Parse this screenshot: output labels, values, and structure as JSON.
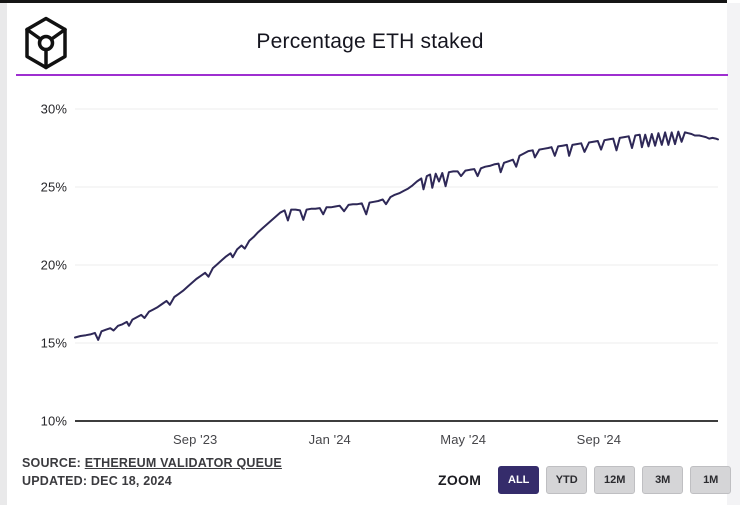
{
  "header": {
    "title": "Percentage ETH staked",
    "logo": "cube-node-logo"
  },
  "colors": {
    "divider": "#9e2fd0",
    "line": "#2e2857",
    "grid": "#ececec",
    "axis": "#3d3d3d",
    "active_button_bg": "#352c6b",
    "button_bg": "#d5d5d7"
  },
  "footer": {
    "source_label": "SOURCE:",
    "source_link": "ETHEREUM VALIDATOR QUEUE",
    "updated": "UPDATED: DEC 18, 2024",
    "zoom_label": "ZOOM",
    "zoom_buttons": [
      {
        "label": "ALL",
        "active": true
      },
      {
        "label": "YTD",
        "active": false
      },
      {
        "label": "12M",
        "active": false
      },
      {
        "label": "3M",
        "active": false
      },
      {
        "label": "1M",
        "active": false
      }
    ]
  },
  "chart_data": {
    "type": "line",
    "title": "Percentage ETH staked",
    "xlabel": "",
    "ylabel": "",
    "ylim": [
      10,
      30
    ],
    "grid": true,
    "legend": "none",
    "yticks": [
      {
        "value": 30,
        "label": "30%"
      },
      {
        "value": 25,
        "label": "25%"
      },
      {
        "value": 20,
        "label": "20%"
      },
      {
        "value": 15,
        "label": "15%"
      },
      {
        "value": 10,
        "label": "10%"
      }
    ],
    "xticks": [
      {
        "date": "2023-09-01",
        "label": "Sep '23"
      },
      {
        "date": "2024-01-01",
        "label": "Jan '24"
      },
      {
        "date": "2024-05-01",
        "label": "May '24"
      },
      {
        "date": "2024-09-01",
        "label": "Sep '24"
      }
    ],
    "series": [
      {
        "name": "Percentage ETH staked",
        "points": [
          [
            "2023-05-15",
            15.35
          ],
          [
            "2023-05-20",
            15.45
          ],
          [
            "2023-05-25",
            15.5
          ],
          [
            "2023-05-29",
            15.55
          ],
          [
            "2023-06-02",
            15.65
          ],
          [
            "2023-06-05",
            15.2
          ],
          [
            "2023-06-08",
            15.75
          ],
          [
            "2023-06-12",
            15.85
          ],
          [
            "2023-06-16",
            15.95
          ],
          [
            "2023-06-19",
            15.8
          ],
          [
            "2023-06-23",
            16.1
          ],
          [
            "2023-06-27",
            16.2
          ],
          [
            "2023-07-01",
            16.35
          ],
          [
            "2023-07-03",
            16.1
          ],
          [
            "2023-07-06",
            16.5
          ],
          [
            "2023-07-10",
            16.65
          ],
          [
            "2023-07-14",
            16.8
          ],
          [
            "2023-07-17",
            16.6
          ],
          [
            "2023-07-21",
            17.0
          ],
          [
            "2023-07-25",
            17.15
          ],
          [
            "2023-07-29",
            17.3
          ],
          [
            "2023-08-02",
            17.5
          ],
          [
            "2023-08-06",
            17.7
          ],
          [
            "2023-08-09",
            17.45
          ],
          [
            "2023-08-13",
            17.95
          ],
          [
            "2023-08-17",
            18.15
          ],
          [
            "2023-08-21",
            18.35
          ],
          [
            "2023-08-25",
            18.6
          ],
          [
            "2023-08-29",
            18.85
          ],
          [
            "2023-09-02",
            19.1
          ],
          [
            "2023-09-06",
            19.3
          ],
          [
            "2023-09-10",
            19.5
          ],
          [
            "2023-09-13",
            19.25
          ],
          [
            "2023-09-17",
            19.8
          ],
          [
            "2023-09-21",
            20.05
          ],
          [
            "2023-09-25",
            20.3
          ],
          [
            "2023-09-29",
            20.55
          ],
          [
            "2023-10-03",
            20.75
          ],
          [
            "2023-10-05",
            20.5
          ],
          [
            "2023-10-09",
            21.0
          ],
          [
            "2023-10-13",
            21.25
          ],
          [
            "2023-10-16",
            21.05
          ],
          [
            "2023-10-20",
            21.55
          ],
          [
            "2023-10-24",
            21.8
          ],
          [
            "2023-10-28",
            22.1
          ],
          [
            "2023-11-01",
            22.35
          ],
          [
            "2023-11-05",
            22.6
          ],
          [
            "2023-11-09",
            22.85
          ],
          [
            "2023-11-13",
            23.1
          ],
          [
            "2023-11-17",
            23.35
          ],
          [
            "2023-11-21",
            23.5
          ],
          [
            "2023-11-24",
            22.85
          ],
          [
            "2023-11-27",
            23.55
          ],
          [
            "2023-12-01",
            23.55
          ],
          [
            "2023-12-05",
            23.5
          ],
          [
            "2023-12-08",
            22.9
          ],
          [
            "2023-12-11",
            23.55
          ],
          [
            "2023-12-15",
            23.6
          ],
          [
            "2023-12-19",
            23.6
          ],
          [
            "2023-12-23",
            23.65
          ],
          [
            "2023-12-26",
            23.25
          ],
          [
            "2023-12-29",
            23.7
          ],
          [
            "2024-01-02",
            23.7
          ],
          [
            "2024-01-06",
            23.75
          ],
          [
            "2024-01-10",
            23.8
          ],
          [
            "2024-01-14",
            23.45
          ],
          [
            "2024-01-18",
            23.85
          ],
          [
            "2024-01-22",
            23.9
          ],
          [
            "2024-01-26",
            23.9
          ],
          [
            "2024-01-30",
            23.95
          ],
          [
            "2024-02-03",
            23.25
          ],
          [
            "2024-02-06",
            24.0
          ],
          [
            "2024-02-10",
            24.05
          ],
          [
            "2024-02-14",
            24.1
          ],
          [
            "2024-02-18",
            24.2
          ],
          [
            "2024-02-21",
            23.9
          ],
          [
            "2024-02-25",
            24.35
          ],
          [
            "2024-02-29",
            24.5
          ],
          [
            "2024-03-04",
            24.6
          ],
          [
            "2024-03-08",
            24.75
          ],
          [
            "2024-03-12",
            24.9
          ],
          [
            "2024-03-16",
            25.1
          ],
          [
            "2024-03-20",
            25.35
          ],
          [
            "2024-03-24",
            25.55
          ],
          [
            "2024-03-26",
            24.85
          ],
          [
            "2024-03-29",
            25.7
          ],
          [
            "2024-04-01",
            25.8
          ],
          [
            "2024-04-03",
            24.95
          ],
          [
            "2024-04-06",
            25.85
          ],
          [
            "2024-04-09",
            25.35
          ],
          [
            "2024-04-12",
            25.9
          ],
          [
            "2024-04-15",
            25.05
          ],
          [
            "2024-04-18",
            25.95
          ],
          [
            "2024-04-22",
            26.0
          ],
          [
            "2024-04-26",
            26.0
          ],
          [
            "2024-04-29",
            25.7
          ],
          [
            "2024-05-03",
            26.05
          ],
          [
            "2024-05-07",
            26.1
          ],
          [
            "2024-05-11",
            26.15
          ],
          [
            "2024-05-14",
            25.7
          ],
          [
            "2024-05-17",
            26.2
          ],
          [
            "2024-05-21",
            26.3
          ],
          [
            "2024-05-25",
            26.35
          ],
          [
            "2024-05-29",
            26.45
          ],
          [
            "2024-06-02",
            26.5
          ],
          [
            "2024-06-04",
            25.95
          ],
          [
            "2024-06-07",
            26.55
          ],
          [
            "2024-06-11",
            26.65
          ],
          [
            "2024-06-15",
            26.75
          ],
          [
            "2024-06-18",
            26.3
          ],
          [
            "2024-06-21",
            27.0
          ],
          [
            "2024-06-25",
            27.15
          ],
          [
            "2024-06-29",
            27.3
          ],
          [
            "2024-07-03",
            27.35
          ],
          [
            "2024-07-05",
            26.9
          ],
          [
            "2024-07-09",
            27.4
          ],
          [
            "2024-07-13",
            27.45
          ],
          [
            "2024-07-17",
            27.5
          ],
          [
            "2024-07-20",
            27.55
          ],
          [
            "2024-07-23",
            27.0
          ],
          [
            "2024-07-26",
            27.6
          ],
          [
            "2024-07-30",
            27.65
          ],
          [
            "2024-08-03",
            27.7
          ],
          [
            "2024-08-05",
            27.0
          ],
          [
            "2024-08-08",
            27.7
          ],
          [
            "2024-08-12",
            27.75
          ],
          [
            "2024-08-16",
            27.8
          ],
          [
            "2024-08-19",
            27.25
          ],
          [
            "2024-08-23",
            27.85
          ],
          [
            "2024-08-27",
            27.9
          ],
          [
            "2024-08-31",
            27.95
          ],
          [
            "2024-09-03",
            27.4
          ],
          [
            "2024-09-06",
            28.0
          ],
          [
            "2024-09-10",
            28.05
          ],
          [
            "2024-09-14",
            28.1
          ],
          [
            "2024-09-17",
            27.35
          ],
          [
            "2024-09-20",
            28.15
          ],
          [
            "2024-09-24",
            28.2
          ],
          [
            "2024-09-28",
            28.25
          ],
          [
            "2024-10-01",
            27.5
          ],
          [
            "2024-10-04",
            28.3
          ],
          [
            "2024-10-08",
            28.35
          ],
          [
            "2024-10-10",
            27.55
          ],
          [
            "2024-10-13",
            28.35
          ],
          [
            "2024-10-16",
            27.6
          ],
          [
            "2024-10-19",
            28.4
          ],
          [
            "2024-10-22",
            27.65
          ],
          [
            "2024-10-25",
            28.45
          ],
          [
            "2024-10-28",
            27.7
          ],
          [
            "2024-10-31",
            28.5
          ],
          [
            "2024-11-03",
            27.7
          ],
          [
            "2024-11-06",
            28.5
          ],
          [
            "2024-11-09",
            27.75
          ],
          [
            "2024-11-12",
            28.55
          ],
          [
            "2024-11-15",
            27.9
          ],
          [
            "2024-11-18",
            28.5
          ],
          [
            "2024-11-21",
            28.45
          ],
          [
            "2024-11-24",
            28.4
          ],
          [
            "2024-11-27",
            28.3
          ],
          [
            "2024-12-01",
            28.3
          ],
          [
            "2024-12-04",
            28.25
          ],
          [
            "2024-12-07",
            28.2
          ],
          [
            "2024-12-10",
            28.1
          ],
          [
            "2024-12-13",
            28.15
          ],
          [
            "2024-12-16",
            28.1
          ],
          [
            "2024-12-18",
            28.05
          ]
        ]
      }
    ]
  }
}
